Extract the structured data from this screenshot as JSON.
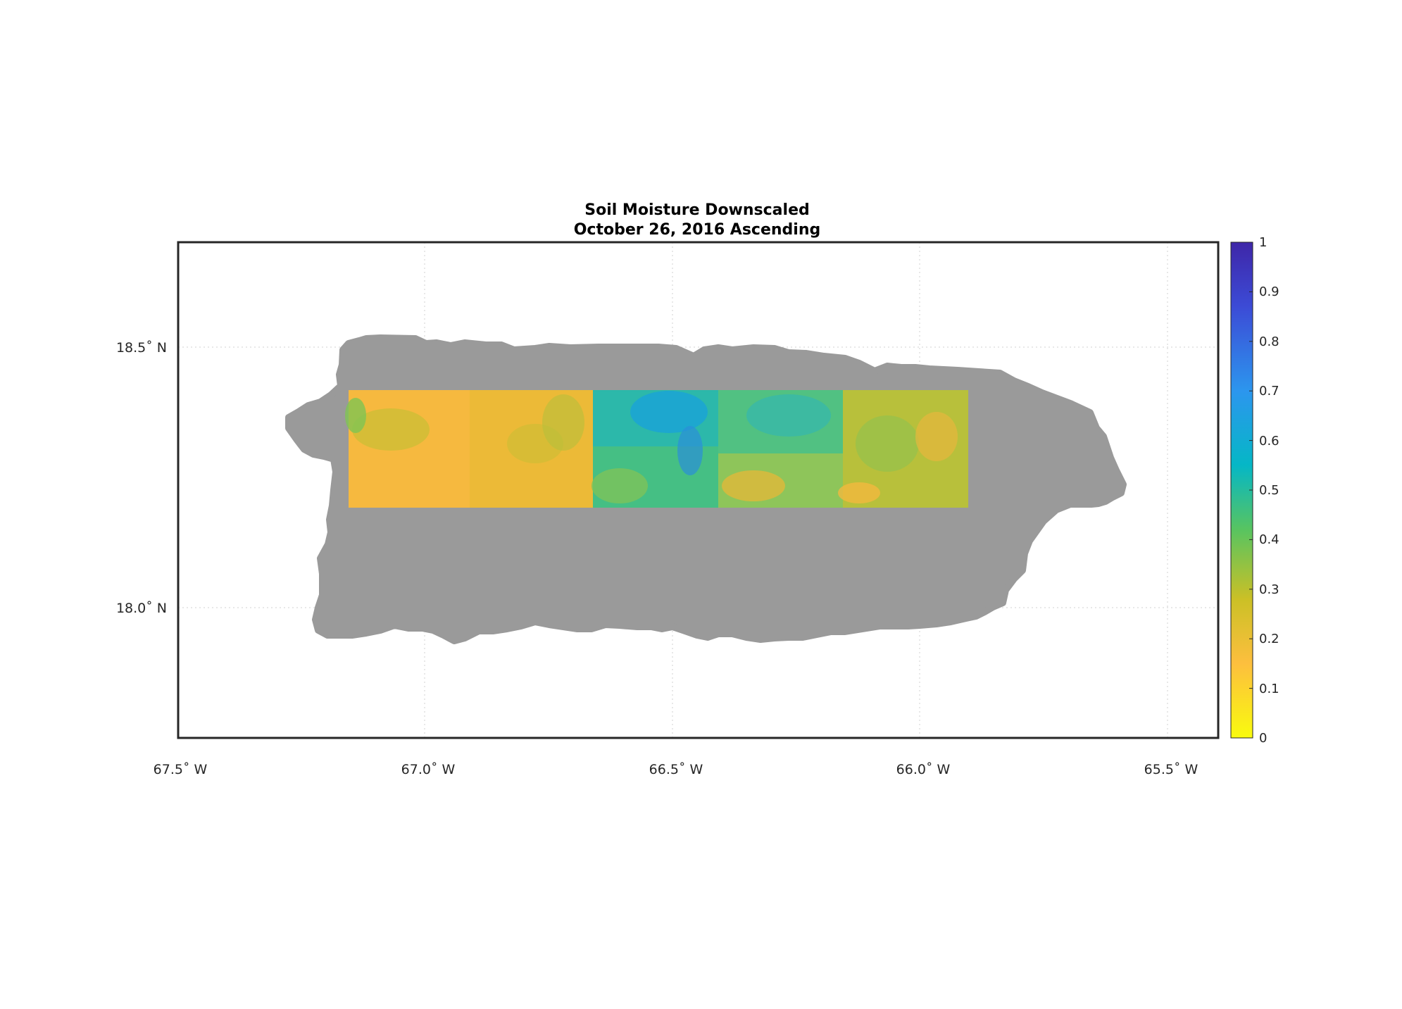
{
  "title": {
    "line1": "Soil Moisture Downscaled",
    "line2": "October 26, 2016 Ascending"
  },
  "map": {
    "lon_range": [
      -67.5,
      -65.4
    ],
    "lat_range": [
      17.74,
      18.69
    ],
    "x_ticks": [
      {
        "value": -67.5,
        "label": "67.5˚ W"
      },
      {
        "value": -67.0,
        "label": "67.0˚ W"
      },
      {
        "value": -66.5,
        "label": "66.5˚ W"
      },
      {
        "value": -66.0,
        "label": "66.0˚ W"
      },
      {
        "value": -65.5,
        "label": "65.5˚ W"
      }
    ],
    "y_ticks": [
      {
        "value": 18.5,
        "label": "18.5˚ N"
      },
      {
        "value": 18.0,
        "label": "18.0˚ N"
      }
    ],
    "grid": true,
    "land_color": "#9a9a9a",
    "data_extent": {
      "lon": [
        -67.15,
        -65.9
      ],
      "lat": [
        18.2,
        18.42
      ]
    }
  },
  "colorbar": {
    "range": [
      0,
      1
    ],
    "labels": [
      "0",
      "0.1",
      "0.2",
      "0.3",
      "0.4",
      "0.5",
      "0.6",
      "0.7",
      "0.8",
      "0.9",
      "1"
    ],
    "colors": [
      "#f9fb0e",
      "#fdbf3e",
      "#cbc026",
      "#58c460",
      "#05b7c6",
      "#2c96ee",
      "#3c4bd6",
      "#3e26a8"
    ]
  }
}
